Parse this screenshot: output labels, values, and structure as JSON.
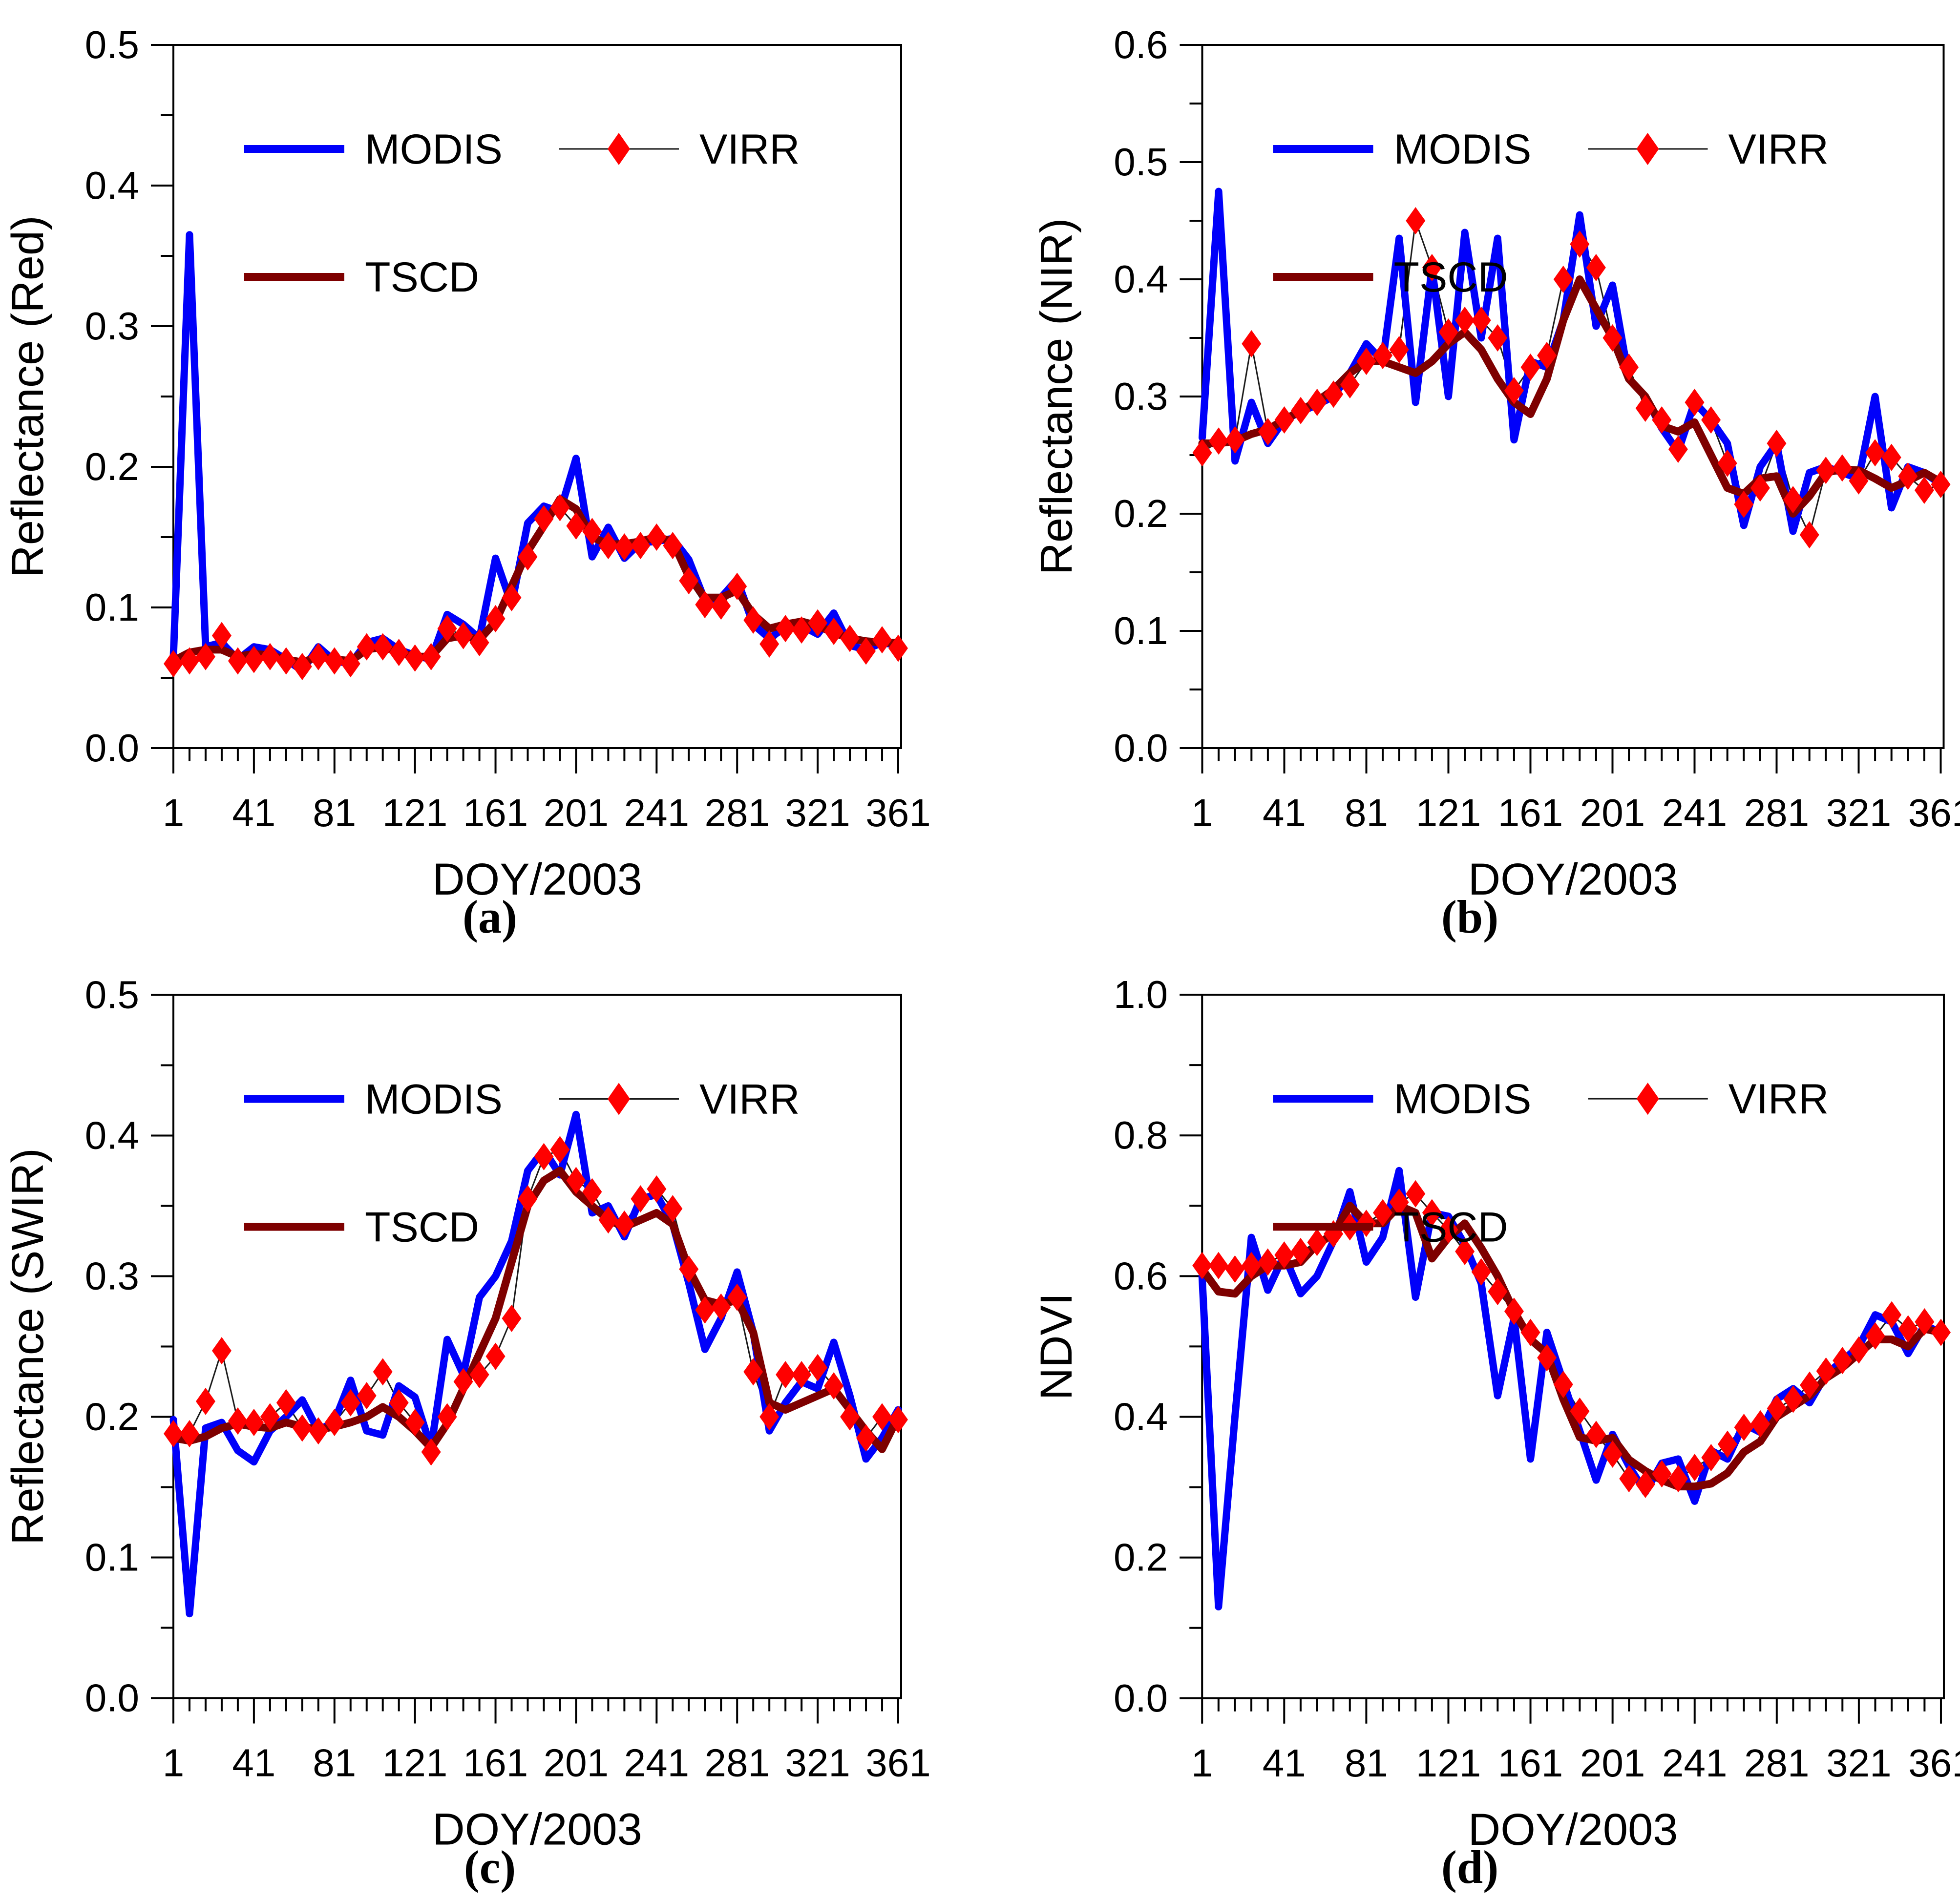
{
  "figure": {
    "background": "#FFFFFF",
    "rows": 2,
    "cols": 2
  },
  "legend": {
    "modis": "MODIS",
    "virr": "VIRR",
    "tscd": "TSCD"
  },
  "colors": {
    "modis": "#0000FA",
    "virr_marker": "#FF0000",
    "virr_line": "#1A1A1A",
    "tscd": "#7E0000",
    "axis": "#000000",
    "text": "#000000"
  },
  "chart_data": [
    {
      "id": "a",
      "type": "line",
      "caption": "(a)",
      "xlabel": "DOY/2003",
      "ylabel": "Reflectance (Red)",
      "x_start": 1,
      "x_step": 8,
      "x_count": 46,
      "xlim": [
        1,
        366
      ],
      "x_major_ticks": [
        1,
        41,
        81,
        121,
        161,
        201,
        241,
        281,
        321,
        361
      ],
      "ylim": [
        0,
        0.5
      ],
      "y_major": 0.1,
      "y_minor": 0.05,
      "grid": false,
      "legend_position": "top-left",
      "series": [
        {
          "name": "MODIS",
          "style": "thick-blue-line",
          "values": [
            0.065,
            0.365,
            0.072,
            0.075,
            0.063,
            0.072,
            0.07,
            0.063,
            0.055,
            0.072,
            0.062,
            0.06,
            0.075,
            0.078,
            0.07,
            0.066,
            0.063,
            0.095,
            0.088,
            0.078,
            0.135,
            0.102,
            0.16,
            0.172,
            0.168,
            0.206,
            0.136,
            0.157,
            0.135,
            0.146,
            0.147,
            0.149,
            0.134,
            0.105,
            0.107,
            0.12,
            0.088,
            0.078,
            0.086,
            0.087,
            0.081,
            0.096,
            0.073,
            0.07,
            0.075,
            0.073
          ]
        },
        {
          "name": "VIRR",
          "style": "red-diamond-thin-line",
          "values": [
            0.06,
            0.062,
            0.065,
            0.08,
            0.062,
            0.063,
            0.065,
            0.062,
            0.058,
            0.065,
            0.062,
            0.06,
            0.072,
            0.072,
            0.068,
            0.064,
            0.065,
            0.085,
            0.08,
            0.075,
            0.092,
            0.107,
            0.136,
            0.163,
            0.171,
            0.158,
            0.154,
            0.144,
            0.143,
            0.144,
            0.15,
            0.144,
            0.119,
            0.102,
            0.101,
            0.115,
            0.091,
            0.074,
            0.085,
            0.084,
            0.089,
            0.083,
            0.078,
            0.069,
            0.077,
            0.071
          ]
        },
        {
          "name": "TSCD",
          "style": "thick-darkred-line",
          "values": [
            0.062,
            0.068,
            0.07,
            0.07,
            0.065,
            0.067,
            0.066,
            0.063,
            0.061,
            0.065,
            0.063,
            0.062,
            0.07,
            0.072,
            0.068,
            0.065,
            0.065,
            0.078,
            0.08,
            0.077,
            0.09,
            0.115,
            0.14,
            0.158,
            0.177,
            0.17,
            0.15,
            0.145,
            0.145,
            0.147,
            0.15,
            0.147,
            0.122,
            0.107,
            0.107,
            0.112,
            0.095,
            0.085,
            0.088,
            0.09,
            0.087,
            0.082,
            0.078,
            0.076,
            0.075,
            0.075
          ]
        }
      ]
    },
    {
      "id": "b",
      "type": "line",
      "caption": "(b)",
      "xlabel": "DOY/2003",
      "ylabel": "Reflectance (NIR)",
      "x_start": 1,
      "x_step": 8,
      "x_count": 46,
      "xlim": [
        1,
        366
      ],
      "x_major_ticks": [
        1,
        41,
        81,
        121,
        161,
        201,
        241,
        281,
        321,
        361
      ],
      "ylim": [
        0,
        0.6
      ],
      "y_major": 0.1,
      "y_minor": 0.05,
      "grid": false,
      "legend_position": "top-left",
      "series": [
        {
          "name": "MODIS",
          "style": "thick-blue-line",
          "values": [
            0.265,
            0.475,
            0.245,
            0.295,
            0.26,
            0.28,
            0.287,
            0.293,
            0.3,
            0.32,
            0.345,
            0.33,
            0.435,
            0.295,
            0.41,
            0.3,
            0.44,
            0.35,
            0.435,
            0.263,
            0.33,
            0.325,
            0.365,
            0.455,
            0.36,
            0.395,
            0.315,
            0.3,
            0.273,
            0.253,
            0.295,
            0.28,
            0.26,
            0.19,
            0.24,
            0.26,
            0.185,
            0.235,
            0.24,
            0.235,
            0.23,
            0.3,
            0.205,
            0.24,
            0.235,
            0.225
          ]
        },
        {
          "name": "VIRR",
          "style": "red-diamond-thin-line",
          "values": [
            0.252,
            0.262,
            0.263,
            0.345,
            0.27,
            0.28,
            0.288,
            0.295,
            0.302,
            0.31,
            0.33,
            0.335,
            0.34,
            0.45,
            0.41,
            0.355,
            0.365,
            0.365,
            0.35,
            0.305,
            0.325,
            0.335,
            0.4,
            0.43,
            0.41,
            0.35,
            0.325,
            0.29,
            0.28,
            0.255,
            0.295,
            0.28,
            0.243,
            0.208,
            0.222,
            0.26,
            0.212,
            0.182,
            0.237,
            0.239,
            0.228,
            0.252,
            0.248,
            0.232,
            0.22,
            0.225
          ]
        },
        {
          "name": "TSCD",
          "style": "thick-darkred-line",
          "values": [
            0.26,
            0.26,
            0.262,
            0.268,
            0.272,
            0.28,
            0.288,
            0.296,
            0.306,
            0.32,
            0.33,
            0.33,
            0.325,
            0.32,
            0.33,
            0.345,
            0.355,
            0.34,
            0.315,
            0.295,
            0.285,
            0.315,
            0.365,
            0.4,
            0.375,
            0.35,
            0.315,
            0.3,
            0.275,
            0.27,
            0.278,
            0.25,
            0.222,
            0.217,
            0.23,
            0.232,
            0.2,
            0.215,
            0.235,
            0.238,
            0.237,
            0.23,
            0.222,
            0.228,
            0.235,
            0.227
          ]
        }
      ]
    },
    {
      "id": "c",
      "type": "line",
      "caption": "(c)",
      "xlabel": "DOY/2003",
      "ylabel": "Reflectance (SWIR)",
      "x_start": 1,
      "x_step": 8,
      "x_count": 46,
      "xlim": [
        1,
        366
      ],
      "x_major_ticks": [
        1,
        41,
        81,
        121,
        161,
        201,
        241,
        281,
        321,
        361
      ],
      "ylim": [
        0,
        0.5
      ],
      "y_major": 0.1,
      "y_minor": 0.05,
      "grid": false,
      "legend_position": "top-left",
      "series": [
        {
          "name": "MODIS",
          "style": "thick-blue-line",
          "values": [
            0.198,
            0.06,
            0.192,
            0.196,
            0.176,
            0.168,
            0.19,
            0.2,
            0.212,
            0.19,
            0.197,
            0.226,
            0.19,
            0.187,
            0.222,
            0.214,
            0.178,
            0.255,
            0.23,
            0.285,
            0.3,
            0.325,
            0.375,
            0.39,
            0.372,
            0.415,
            0.345,
            0.35,
            0.328,
            0.355,
            0.358,
            0.337,
            0.295,
            0.248,
            0.27,
            0.303,
            0.26,
            0.19,
            0.21,
            0.225,
            0.22,
            0.253,
            0.215,
            0.17,
            0.185,
            0.205
          ]
        },
        {
          "name": "VIRR",
          "style": "red-diamond-thin-line",
          "values": [
            0.188,
            0.188,
            0.211,
            0.247,
            0.197,
            0.196,
            0.2,
            0.21,
            0.192,
            0.19,
            0.196,
            0.21,
            0.215,
            0.232,
            0.21,
            0.196,
            0.175,
            0.2,
            0.225,
            0.23,
            0.243,
            0.27,
            0.355,
            0.385,
            0.39,
            0.368,
            0.36,
            0.34,
            0.337,
            0.355,
            0.362,
            0.348,
            0.305,
            0.276,
            0.278,
            0.285,
            0.232,
            0.2,
            0.23,
            0.23,
            0.235,
            0.222,
            0.2,
            0.185,
            0.2,
            0.198
          ]
        },
        {
          "name": "TSCD",
          "style": "thick-darkred-line",
          "values": [
            0.185,
            0.183,
            0.186,
            0.192,
            0.195,
            0.193,
            0.192,
            0.196,
            0.193,
            0.191,
            0.193,
            0.196,
            0.2,
            0.207,
            0.2,
            0.19,
            0.178,
            0.195,
            0.22,
            0.245,
            0.27,
            0.31,
            0.35,
            0.368,
            0.375,
            0.36,
            0.35,
            0.34,
            0.335,
            0.34,
            0.345,
            0.337,
            0.305,
            0.283,
            0.28,
            0.283,
            0.26,
            0.21,
            0.205,
            0.21,
            0.215,
            0.22,
            0.205,
            0.19,
            0.177,
            0.2
          ]
        }
      ]
    },
    {
      "id": "d",
      "type": "line",
      "caption": "(d)",
      "xlabel": "DOY/2003",
      "ylabel": "NDVI",
      "x_start": 1,
      "x_step": 8,
      "x_count": 46,
      "xlim": [
        1,
        366
      ],
      "x_major_ticks": [
        1,
        41,
        81,
        121,
        161,
        201,
        241,
        281,
        321,
        361
      ],
      "ylim": [
        0,
        1.0
      ],
      "y_major": 0.2,
      "y_minor": 0.1,
      "grid": false,
      "legend_position": "top-left",
      "series": [
        {
          "name": "MODIS",
          "style": "thick-blue-line",
          "values": [
            0.6,
            0.13,
            0.4,
            0.655,
            0.58,
            0.63,
            0.575,
            0.6,
            0.65,
            0.72,
            0.62,
            0.655,
            0.75,
            0.57,
            0.69,
            0.685,
            0.645,
            0.59,
            0.43,
            0.54,
            0.34,
            0.52,
            0.45,
            0.38,
            0.31,
            0.375,
            0.33,
            0.293,
            0.334,
            0.34,
            0.28,
            0.352,
            0.34,
            0.39,
            0.378,
            0.425,
            0.44,
            0.42,
            0.46,
            0.48,
            0.5,
            0.545,
            0.535,
            0.49,
            0.53,
            0.52
          ]
        },
        {
          "name": "VIRR",
          "style": "red-diamond-thin-line",
          "values": [
            0.615,
            0.615,
            0.61,
            0.615,
            0.62,
            0.63,
            0.635,
            0.648,
            0.66,
            0.67,
            0.675,
            0.69,
            0.705,
            0.717,
            0.69,
            0.666,
            0.635,
            0.606,
            0.578,
            0.55,
            0.52,
            0.484,
            0.446,
            0.408,
            0.375,
            0.347,
            0.312,
            0.304,
            0.319,
            0.312,
            0.328,
            0.342,
            0.361,
            0.385,
            0.39,
            0.412,
            0.425,
            0.445,
            0.465,
            0.48,
            0.495,
            0.515,
            0.545,
            0.525,
            0.535,
            0.52
          ]
        },
        {
          "name": "TSCD",
          "style": "thick-darkred-line",
          "values": [
            0.61,
            0.578,
            0.575,
            0.6,
            0.615,
            0.615,
            0.62,
            0.645,
            0.66,
            0.7,
            0.675,
            0.675,
            0.7,
            0.69,
            0.625,
            0.655,
            0.675,
            0.64,
            0.6,
            0.55,
            0.51,
            0.49,
            0.425,
            0.371,
            0.366,
            0.37,
            0.339,
            0.323,
            0.31,
            0.301,
            0.301,
            0.305,
            0.32,
            0.35,
            0.365,
            0.4,
            0.415,
            0.43,
            0.455,
            0.47,
            0.49,
            0.51,
            0.51,
            0.5,
            0.525,
            0.52
          ]
        }
      ]
    }
  ]
}
